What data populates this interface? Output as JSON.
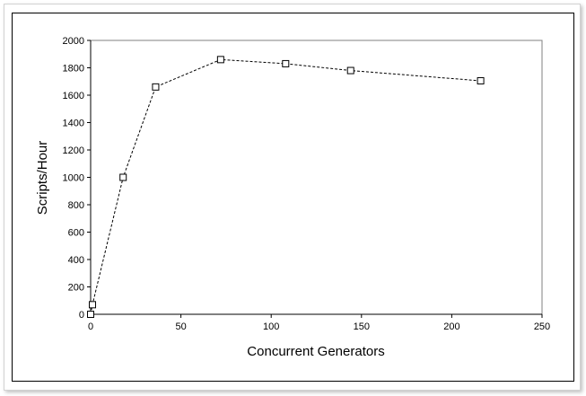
{
  "chart_data": {
    "type": "line",
    "title": "",
    "xlabel": "Concurrent Generators",
    "ylabel": "Scripts/Hour",
    "xlim": [
      0,
      250
    ],
    "ylim": [
      0,
      2000
    ],
    "x_ticks": [
      "0",
      "50",
      "100",
      "150",
      "200",
      "250"
    ],
    "y_ticks": [
      "0",
      "200",
      "400",
      "600",
      "800",
      "1000",
      "1200",
      "1400",
      "1600",
      "1800",
      "2000"
    ],
    "grid": false,
    "legend": "none",
    "marker": "open-square",
    "line_style": "dashed",
    "series": [
      {
        "x": [
          0,
          1,
          18,
          36,
          72,
          108,
          144,
          216
        ],
        "y": [
          0,
          70,
          1000,
          1660,
          1860,
          1830,
          1780,
          1705
        ]
      }
    ]
  }
}
